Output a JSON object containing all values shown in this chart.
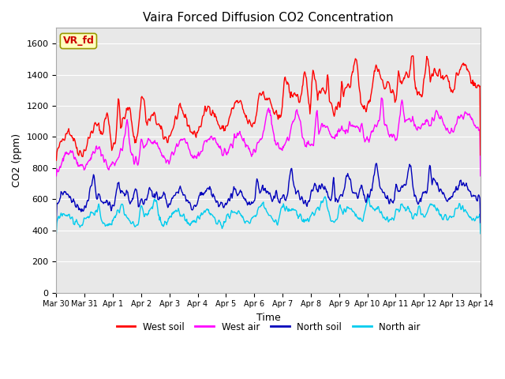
{
  "title": "Vaira Forced Diffusion CO2 Concentration",
  "xlabel": "Time",
  "ylabel": "CO2 (ppm)",
  "ylim": [
    0,
    1700
  ],
  "yticks": [
    0,
    200,
    400,
    600,
    800,
    1000,
    1200,
    1400,
    1600
  ],
  "colors": {
    "west_soil": "#ff0000",
    "west_air": "#ff00ff",
    "north_soil": "#0000bb",
    "north_air": "#00ccee"
  },
  "legend_labels": [
    "West soil",
    "West air",
    "North soil",
    "North air"
  ],
  "annotation_text": "VR_fd",
  "background_color": "#e8e8e8",
  "line_width": 1.0,
  "figsize": [
    6.4,
    4.8
  ],
  "dpi": 100,
  "tick_labels": [
    "Mar 30",
    "Mar 31",
    "Apr 1",
    "Apr 2",
    "Apr 3",
    "Apr 4",
    "Apr 5",
    "Apr 6",
    "Apr 7",
    "Apr 8",
    "Apr 9",
    "Apr 10",
    "Apr 11",
    "Apr 12",
    "Apr 13",
    "Apr 14"
  ]
}
